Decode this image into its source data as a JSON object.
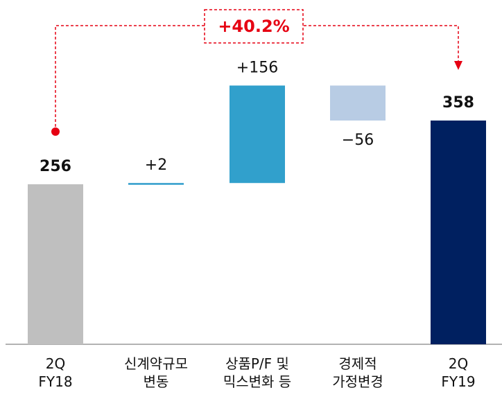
{
  "chart_data": {
    "type": "waterfall",
    "categories": [
      "2Q\nFY18",
      "신계약규모\n변동",
      "상품P/F 및\n믹스변화 등",
      "경제적\n가정변경",
      "2Q\nFY19"
    ],
    "values": [
      256,
      2,
      156,
      -56,
      358
    ],
    "value_labels": [
      "256",
      "+2",
      "+156",
      "−56",
      "358"
    ],
    "colors": [
      "#bfbfbf",
      "#2e9ccb",
      "#31a0cc",
      "#b8cce4",
      "#002060"
    ],
    "annotation": "+40.2%",
    "annotation_color": "#e60012"
  }
}
